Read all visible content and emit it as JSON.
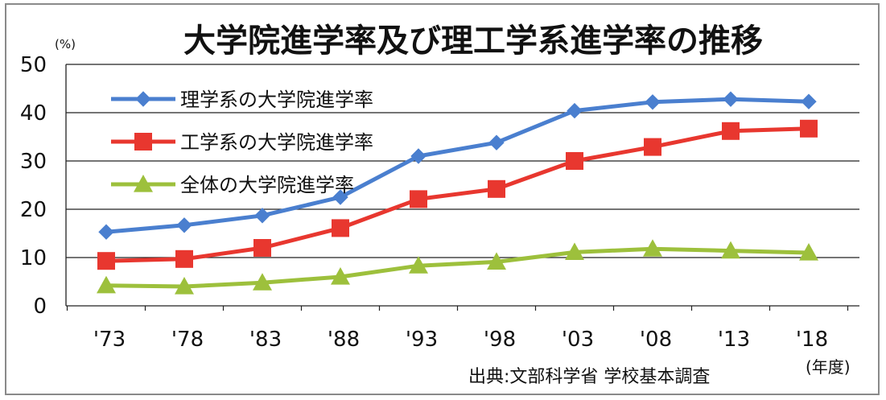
{
  "chart_data": {
    "type": "line",
    "title": "大学院進学率及び理工学系進学率の推移",
    "ylabel": "(%)",
    "xlabel": "(年度)",
    "source": "出典:文部科学省 学校基本調査",
    "categories": [
      "'73",
      "'78",
      "'83",
      "'88",
      "'93",
      "'98",
      "'03",
      "'08",
      "'13",
      "'18"
    ],
    "ylim": [
      0,
      50
    ],
    "yticks": [
      0,
      10,
      20,
      30,
      40,
      50
    ],
    "grid": true,
    "legend_position": "top-left",
    "series": [
      {
        "name": "理学系の大学院進学率",
        "color": "#4a7fcf",
        "marker": "diamond",
        "values": [
          15.3,
          16.7,
          18.7,
          22.5,
          31.0,
          33.8,
          40.4,
          42.2,
          42.8,
          42.3
        ]
      },
      {
        "name": "工学系の大学院進学率",
        "color": "#e8372f",
        "marker": "square",
        "values": [
          9.3,
          9.7,
          12.0,
          16.1,
          22.1,
          24.2,
          30.0,
          32.9,
          36.2,
          36.7
        ]
      },
      {
        "name": "全体の大学院進学率",
        "color": "#9dc03c",
        "marker": "triangle",
        "values": [
          4.2,
          4.0,
          4.8,
          6.0,
          8.3,
          9.1,
          11.1,
          11.8,
          11.4,
          11.0
        ]
      }
    ]
  }
}
